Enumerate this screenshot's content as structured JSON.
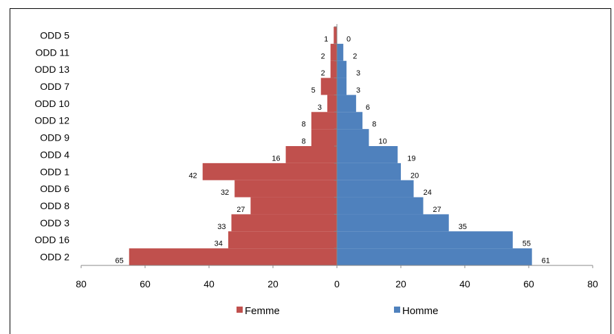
{
  "chart_data": {
    "type": "bar",
    "orientation": "horizontal",
    "layout": "population-pyramid",
    "categories": [
      "ODD 5",
      "ODD 11",
      "ODD 13",
      "ODD 7",
      "ODD 10",
      "ODD 12",
      "ODD 9",
      "ODD 4",
      "ODD 1",
      "ODD 6",
      "ODD 8",
      "ODD 3",
      "ODD 16",
      "ODD 2"
    ],
    "series": [
      {
        "name": "Femme",
        "color": "#C0504D",
        "direction": "left",
        "values": [
          1,
          2,
          2,
          5,
          3,
          8,
          8,
          16,
          42,
          32,
          27,
          33,
          34,
          65
        ]
      },
      {
        "name": "Homme",
        "color": "#4F81BD",
        "direction": "right",
        "values": [
          0,
          2,
          3,
          3,
          6,
          8,
          10,
          19,
          20,
          24,
          27,
          35,
          55,
          61
        ]
      }
    ],
    "xlim": [
      -80,
      80
    ],
    "x_tick_labels": [
      "80",
      "60",
      "40",
      "20",
      "0",
      "20",
      "40",
      "60",
      "80"
    ],
    "legend_position": "bottom",
    "grid": false,
    "title": "",
    "xlabel": "",
    "ylabel": ""
  }
}
